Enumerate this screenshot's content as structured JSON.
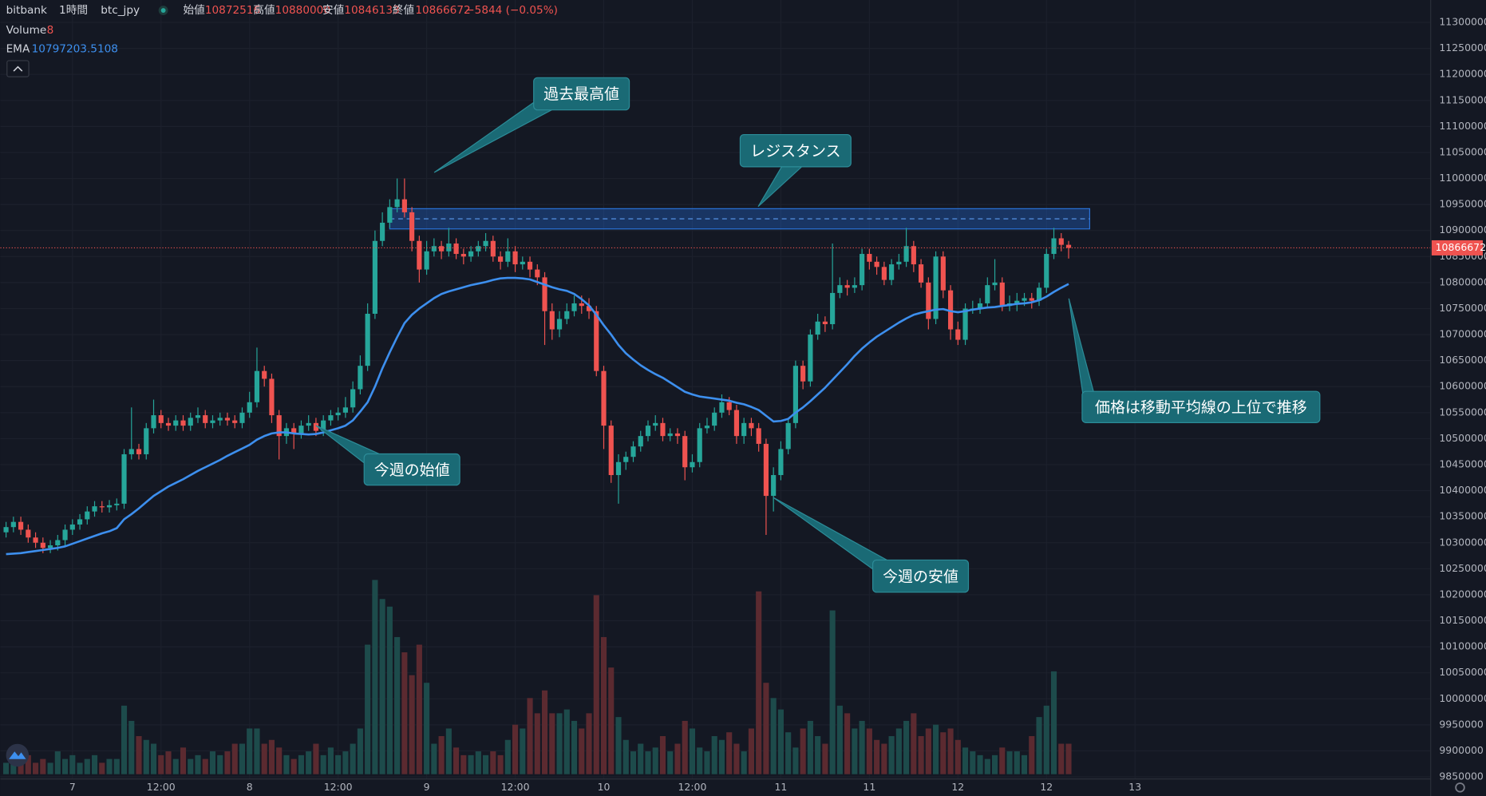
{
  "chart_data": {
    "type": "candlestick",
    "symbol": "bitbank",
    "interval": "1時間",
    "pair": "btc_jpy",
    "ohlc_labels": [
      "始値",
      "高値",
      "安値",
      "終値"
    ],
    "change": "−5844 (−0.05%)",
    "up_color": "#26a69a",
    "down_color": "#ef5350",
    "grid": true,
    "ylim": [
      9846000,
      11343000
    ],
    "yticks": [
      9850000,
      9900000,
      9950000,
      10000000,
      10050000,
      10100000,
      10150000,
      10200000,
      10250000,
      10300000,
      10350000,
      10400000,
      10450000,
      10500000,
      10550000,
      10600000,
      10650000,
      10700000,
      10750000,
      10800000,
      10850000,
      10900000,
      10950000,
      11000000,
      11050000,
      11100000,
      11150000,
      11200000,
      11250000,
      11300000
    ],
    "categories": [
      null,
      null,
      null,
      null,
      null,
      null,
      null,
      null,
      null,
      "7",
      null,
      null,
      null,
      null,
      null,
      null,
      null,
      null,
      null,
      null,
      null,
      "12:00",
      null,
      null,
      null,
      null,
      null,
      null,
      null,
      null,
      null,
      null,
      null,
      "8",
      null,
      null,
      null,
      null,
      null,
      null,
      null,
      null,
      null,
      null,
      null,
      "12:00",
      null,
      null,
      null,
      null,
      null,
      null,
      null,
      null,
      null,
      null,
      null,
      "9",
      null,
      null,
      null,
      null,
      null,
      null,
      null,
      null,
      null,
      null,
      null,
      "12:00",
      null,
      null,
      null,
      null,
      null,
      null,
      null,
      null,
      null,
      null,
      null,
      "10",
      null,
      null,
      null,
      null,
      null,
      null,
      null,
      null,
      null,
      null,
      null,
      "12:00",
      null,
      null,
      null,
      null,
      null,
      null,
      null,
      null,
      null,
      null,
      null,
      "11",
      null,
      null,
      null,
      null,
      null,
      null,
      null,
      null,
      null,
      null,
      null,
      "11",
      null,
      null,
      null,
      null,
      null,
      null,
      null,
      null,
      null,
      null,
      null,
      "12",
      null,
      null,
      null,
      null,
      null,
      null,
      null,
      null,
      null,
      null,
      null,
      "12",
      null,
      null,
      null,
      null,
      null,
      null,
      null,
      null,
      null,
      null,
      null,
      "13"
    ],
    "open": [
      10320000,
      10330000,
      10340000,
      10325000,
      10310000,
      10300000,
      10290000,
      10295000,
      10305000,
      10325000,
      10335000,
      10345000,
      10360000,
      10370000,
      10368000,
      10372000,
      10375000,
      10470000,
      10480000,
      10470000,
      10520000,
      10545000,
      10530000,
      10525000,
      10535000,
      10525000,
      10540000,
      10545000,
      10530000,
      10535000,
      10540000,
      10535000,
      10530000,
      10550000,
      10570000,
      10630000,
      10615000,
      10545000,
      10505000,
      10520000,
      10510000,
      10525000,
      10530000,
      10515000,
      10535000,
      10545000,
      10550000,
      10560000,
      10595000,
      10640000,
      10740000,
      10880000,
      10915000,
      10945000,
      10960000,
      10935000,
      10880000,
      10825000,
      10860000,
      10870000,
      10860000,
      10875000,
      10855000,
      10850000,
      10860000,
      10870000,
      10880000,
      10850000,
      10840000,
      10860000,
      10835000,
      10840000,
      10825000,
      10810000,
      10745000,
      10710000,
      10730000,
      10745000,
      10760000,
      10755000,
      10745000,
      10630000,
      10525000,
      10430000,
      10455000,
      10465000,
      10485000,
      10505000,
      10525000,
      10530000,
      10505000,
      10510000,
      10505000,
      10445000,
      10455000,
      10520000,
      10525000,
      10550000,
      10570000,
      10555000,
      10505000,
      10530000,
      10520000,
      10490000,
      10390000,
      10430000,
      10480000,
      10530000,
      10640000,
      10610000,
      10700000,
      10725000,
      10720000,
      10780000,
      10795000,
      10790000,
      10795000,
      10855000,
      10840000,
      10830000,
      10805000,
      10835000,
      10840000,
      10870000,
      10835000,
      10800000,
      10730000,
      10850000,
      10785000,
      10710000,
      10690000,
      10750000,
      10750000,
      10760000,
      10795000,
      10800000,
      10755000,
      10760000,
      10765000,
      10770000,
      10765000,
      10790000,
      10855000,
      10885000,
      10872516,
      null,
      null,
      null,
      null,
      null,
      null,
      null,
      null,
      null
    ],
    "high": [
      10340000,
      10350000,
      10350000,
      10335000,
      10320000,
      10310000,
      10305000,
      10315000,
      10335000,
      10345000,
      10355000,
      10370000,
      10380000,
      10380000,
      10382000,
      10385000,
      10480000,
      10560000,
      10490000,
      10530000,
      10575000,
      10555000,
      10540000,
      10545000,
      10545000,
      10550000,
      10560000,
      10555000,
      10545000,
      10550000,
      10550000,
      10545000,
      10560000,
      10590000,
      10675000,
      10640000,
      10625000,
      10555000,
      10530000,
      10530000,
      10535000,
      10545000,
      10540000,
      10545000,
      10555000,
      10560000,
      10580000,
      10610000,
      10660000,
      10760000,
      10900000,
      10935000,
      10960000,
      11000000,
      11000000,
      10945000,
      10890000,
      10880000,
      10885000,
      10880000,
      10905000,
      10885000,
      10865000,
      10870000,
      10880000,
      10895000,
      10890000,
      10860000,
      10885000,
      10870000,
      10850000,
      10850000,
      10835000,
      10820000,
      10760000,
      10745000,
      10760000,
      10775000,
      10775000,
      10770000,
      10755000,
      10640000,
      10535000,
      10470000,
      10475000,
      10495000,
      10515000,
      10535000,
      10545000,
      10540000,
      10520000,
      10520000,
      10515000,
      10470000,
      10530000,
      10540000,
      10560000,
      10585000,
      10580000,
      10565000,
      10540000,
      10540000,
      10530000,
      10500000,
      10445000,
      10495000,
      10540000,
      10650000,
      10650000,
      10710000,
      10740000,
      10735000,
      10875000,
      10810000,
      10805000,
      10810000,
      10865000,
      10865000,
      10850000,
      10840000,
      10845000,
      10855000,
      10905000,
      10880000,
      10845000,
      10810000,
      10860000,
      10860000,
      10795000,
      10725000,
      10760000,
      10765000,
      10770000,
      10810000,
      10845000,
      10810000,
      10775000,
      10780000,
      10780000,
      10780000,
      10800000,
      10865000,
      10905000,
      10895000,
      10880000,
      null,
      null,
      null,
      null,
      null,
      null,
      null,
      null,
      null
    ],
    "low": [
      10310000,
      10320000,
      10315000,
      10300000,
      10290000,
      10280000,
      10280000,
      10285000,
      10295000,
      10315000,
      10325000,
      10335000,
      10350000,
      10358000,
      10358000,
      10362000,
      10365000,
      10460000,
      10460000,
      10460000,
      10510000,
      10520000,
      10515000,
      10515000,
      10515000,
      10515000,
      10530000,
      10520000,
      10520000,
      10525000,
      10525000,
      10520000,
      10520000,
      10540000,
      10560000,
      10600000,
      10530000,
      10460000,
      10490000,
      10480000,
      10500000,
      10515000,
      10505000,
      10505000,
      10525000,
      10535000,
      10540000,
      10550000,
      10585000,
      10630000,
      10730000,
      10870000,
      10905000,
      10935000,
      10925000,
      10860000,
      10800000,
      10815000,
      10850000,
      10845000,
      10850000,
      10845000,
      10835000,
      10840000,
      10850000,
      10860000,
      10840000,
      10825000,
      10830000,
      10820000,
      10825000,
      10810000,
      10795000,
      10680000,
      10690000,
      10695000,
      10720000,
      10735000,
      10740000,
      10730000,
      10620000,
      10480000,
      10415000,
      10375000,
      10440000,
      10455000,
      10475000,
      10495000,
      10515000,
      10495000,
      10495000,
      10490000,
      10420000,
      10435000,
      10445000,
      10510000,
      10515000,
      10540000,
      10545000,
      10490000,
      10490000,
      10505000,
      10475000,
      10315000,
      10360000,
      10420000,
      10470000,
      10520000,
      10595000,
      10600000,
      10690000,
      10705000,
      10710000,
      10770000,
      10775000,
      10780000,
      10785000,
      10825000,
      10815000,
      10795000,
      10795000,
      10825000,
      10830000,
      10820000,
      10790000,
      10710000,
      10720000,
      10770000,
      10690000,
      10680000,
      10680000,
      10740000,
      10740000,
      10750000,
      10785000,
      10745000,
      10745000,
      10745000,
      10755000,
      10750000,
      10755000,
      10780000,
      10845000,
      10860000,
      10846133,
      null,
      null,
      null,
      null,
      null,
      null,
      null,
      null,
      null
    ],
    "close": [
      10330000,
      10340000,
      10325000,
      10310000,
      10300000,
      10290000,
      10295000,
      10305000,
      10325000,
      10335000,
      10345000,
      10360000,
      10370000,
      10368000,
      10372000,
      10375000,
      10470000,
      10480000,
      10470000,
      10520000,
      10545000,
      10530000,
      10525000,
      10535000,
      10525000,
      10540000,
      10545000,
      10530000,
      10535000,
      10540000,
      10535000,
      10530000,
      10550000,
      10570000,
      10630000,
      10615000,
      10545000,
      10505000,
      10520000,
      10510000,
      10525000,
      10530000,
      10515000,
      10535000,
      10545000,
      10550000,
      10560000,
      10595000,
      10640000,
      10740000,
      10880000,
      10915000,
      10945000,
      10960000,
      10935000,
      10880000,
      10825000,
      10860000,
      10870000,
      10860000,
      10875000,
      10855000,
      10850000,
      10860000,
      10870000,
      10880000,
      10850000,
      10840000,
      10860000,
      10835000,
      10840000,
      10825000,
      10810000,
      10745000,
      10710000,
      10730000,
      10745000,
      10760000,
      10755000,
      10745000,
      10630000,
      10525000,
      10430000,
      10455000,
      10465000,
      10485000,
      10505000,
      10525000,
      10530000,
      10505000,
      10510000,
      10505000,
      10445000,
      10455000,
      10520000,
      10525000,
      10550000,
      10570000,
      10555000,
      10505000,
      10530000,
      10520000,
      10490000,
      10390000,
      10430000,
      10480000,
      10530000,
      10640000,
      10610000,
      10700000,
      10725000,
      10720000,
      10780000,
      10795000,
      10790000,
      10795000,
      10855000,
      10840000,
      10830000,
      10805000,
      10835000,
      10840000,
      10870000,
      10835000,
      10800000,
      10730000,
      10850000,
      10785000,
      10710000,
      10690000,
      10750000,
      10750000,
      10760000,
      10795000,
      10800000,
      10755000,
      10760000,
      10765000,
      10770000,
      10765000,
      10790000,
      10855000,
      10885000,
      10872516,
      10866672,
      null,
      null,
      null,
      null,
      null,
      null,
      null,
      null,
      null
    ],
    "volume": {
      "name": "Volume",
      "up_color": "#1d4b4b",
      "down_color": "#5b2a30",
      "values": [
        3,
        4,
        3,
        5,
        3,
        4,
        3,
        6,
        4,
        5,
        3,
        4,
        5,
        3,
        4,
        4,
        18,
        14,
        10,
        9,
        8,
        5,
        6,
        4,
        7,
        4,
        5,
        4,
        6,
        5,
        6,
        8,
        8,
        12,
        12,
        8,
        9,
        7,
        5,
        4,
        5,
        6,
        8,
        5,
        7,
        5,
        6,
        8,
        12,
        34,
        51,
        46,
        44,
        36,
        32,
        26,
        34,
        24,
        8,
        10,
        12,
        7,
        5,
        5,
        6,
        5,
        6,
        5,
        9,
        13,
        12,
        20,
        16,
        22,
        16,
        16,
        17,
        14,
        12,
        16,
        47,
        36,
        28,
        15,
        9,
        6,
        8,
        6,
        7,
        10,
        6,
        8,
        14,
        12,
        7,
        6,
        10,
        9,
        11,
        8,
        6,
        12,
        48,
        24,
        20,
        17,
        11,
        7,
        12,
        14,
        10,
        8,
        43,
        18,
        16,
        12,
        14,
        12,
        9,
        8,
        10,
        12,
        14,
        16,
        10,
        12,
        13,
        11,
        12,
        9,
        7,
        6,
        5,
        4,
        5,
        7,
        6,
        6,
        5,
        10,
        15,
        18,
        27,
        8,
        8,
        null,
        null,
        null,
        null,
        null,
        null,
        null,
        null,
        null
      ]
    },
    "ema": {
      "name": "EMA",
      "color": "#3d8fee",
      "values": [
        10278000,
        10279000,
        10280000,
        10282000,
        10284000,
        10286000,
        10288000,
        10290000,
        10293000,
        10298000,
        10303000,
        10308000,
        10313000,
        10318000,
        10322000,
        10328000,
        10345000,
        10355000,
        10366000,
        10378000,
        10390000,
        10399000,
        10408000,
        10415000,
        10422000,
        10430000,
        10438000,
        10445000,
        10452000,
        10459000,
        10467000,
        10474000,
        10481000,
        10488000,
        10498000,
        10505000,
        10510000,
        10512000,
        10512000,
        10510000,
        10509000,
        10508000,
        10509000,
        10512000,
        10516000,
        10520000,
        10525000,
        10535000,
        10552000,
        10570000,
        10600000,
        10635000,
        10666000,
        10695000,
        10722000,
        10738000,
        10750000,
        10760000,
        10770000,
        10778000,
        10783000,
        10787000,
        10791000,
        10795000,
        10798000,
        10801000,
        10805000,
        10808000,
        10809000,
        10809000,
        10808000,
        10806000,
        10801000,
        10796000,
        10791000,
        10787000,
        10784000,
        10778000,
        10768000,
        10756000,
        10738000,
        10718000,
        10700000,
        10680000,
        10664000,
        10652000,
        10641000,
        10632000,
        10624000,
        10617000,
        10608000,
        10599000,
        10590000,
        10585000,
        10581000,
        10579000,
        10577000,
        10575000,
        10573000,
        10569000,
        10566000,
        10561000,
        10555000,
        10544000,
        10533000,
        10534000,
        10538000,
        10550000,
        10560000,
        10572000,
        10585000,
        10598000,
        10613000,
        10628000,
        10643000,
        10659000,
        10673000,
        10685000,
        10696000,
        10705000,
        10714000,
        10723000,
        10731000,
        10738000,
        10742000,
        10745000,
        10748000,
        10749000,
        10745000,
        10743000,
        10745000,
        10748000,
        10750000,
        10752000,
        10753000,
        10755000,
        10757000,
        10759000,
        10760000,
        10762000,
        10766000,
        10773000,
        10782000,
        10790000,
        10797203.5108,
        null,
        null,
        null,
        null,
        null,
        null,
        null,
        null,
        null
      ]
    },
    "resistance_zone": [
      10903000,
      10942000
    ],
    "annotations": [
      "過去最高値",
      "レジスタンス",
      "今週の始値",
      "今週の安値",
      "価格は移動平均線の上位で推移"
    ]
  }
}
